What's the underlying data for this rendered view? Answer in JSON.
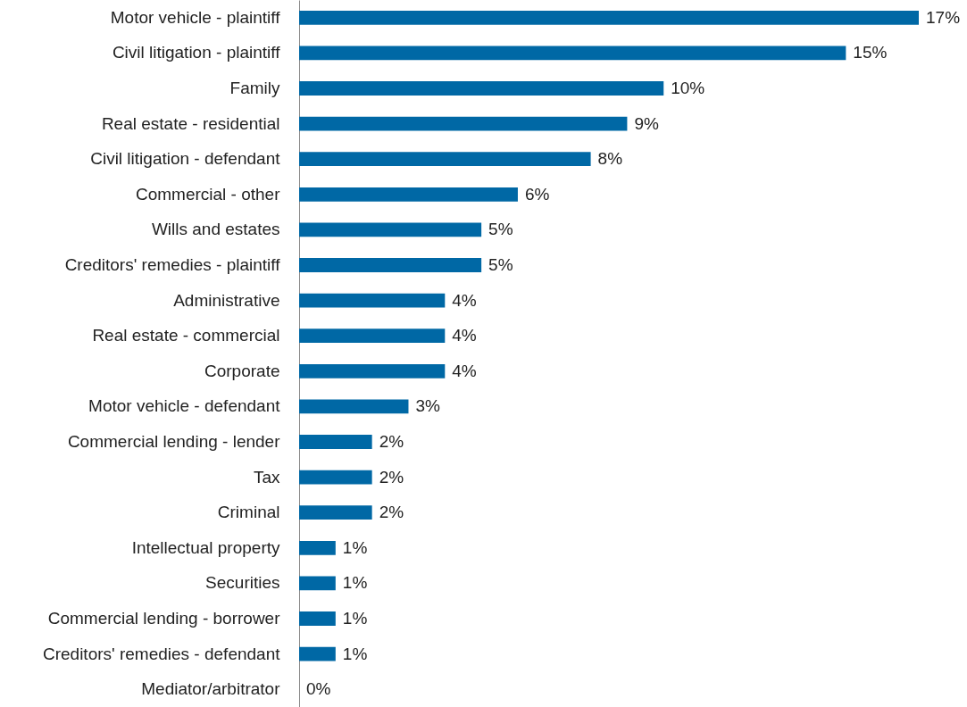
{
  "chart_data": {
    "type": "bar",
    "orientation": "horizontal",
    "categories": [
      "Motor vehicle - plaintiff",
      "Civil litigation - plaintiff",
      "Family",
      "Real estate - residential",
      "Civil litigation - defendant",
      "Commercial - other",
      "Wills and estates",
      "Creditors' remedies - plaintiff",
      "Administrative",
      "Real estate - commercial",
      "Corporate",
      "Motor vehicle - defendant",
      "Commercial lending - lender",
      "Tax",
      "Criminal",
      "Intellectual property",
      "Securities",
      "Commercial lending - borrower",
      "Creditors' remedies - defendant",
      "Mediator/arbitrator"
    ],
    "values": [
      17,
      15,
      10,
      9,
      8,
      6,
      5,
      5,
      4,
      4,
      4,
      3,
      2,
      2,
      2,
      1,
      1,
      1,
      1,
      0
    ],
    "value_labels": [
      "17%",
      "15%",
      "10%",
      "9%",
      "8%",
      "6%",
      "5%",
      "5%",
      "4%",
      "4%",
      "4%",
      "3%",
      "2%",
      "2%",
      "2%",
      "1%",
      "1%",
      "1%",
      "1%",
      "0%"
    ],
    "color": "#0068a5",
    "tick_labels": "y"
  }
}
